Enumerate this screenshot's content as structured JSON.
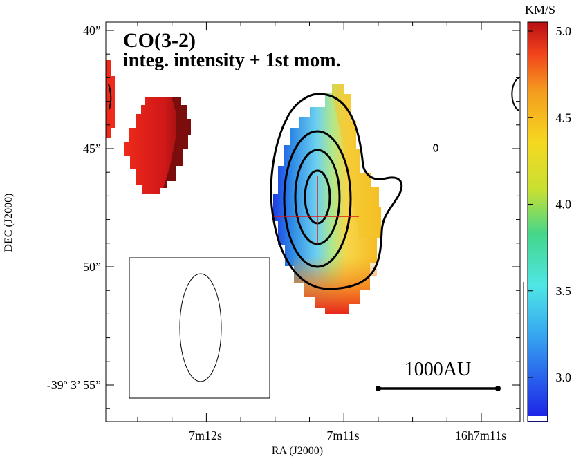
{
  "chart_data": {
    "type": "heatmap",
    "title_lines": [
      "CO(3-2)",
      "integ. intensity + 1st mom."
    ],
    "xlabel": "RA (J2000)",
    "ylabel": "DEC (J2000)",
    "x_ticks": [
      "7m12s",
      "7m11s",
      "16h7m11s"
    ],
    "y_ticks": [
      "40”",
      "45”",
      "50”",
      "-39º 3’ 55”"
    ],
    "y_tick_values_arcsec": [
      40,
      45,
      50,
      55
    ],
    "colorbar": {
      "unit": "KM/S",
      "ticks": [
        "5.0",
        "4.5",
        "4.0",
        "3.5",
        "3.0"
      ],
      "tick_values": [
        5.0,
        4.5,
        4.0,
        3.5,
        3.0
      ],
      "range": [
        2.75,
        5.1
      ],
      "colormap": "rainbow (blue-cyan-green-yellow-red)"
    },
    "scale_bar_label": "1000AU",
    "contours": "integrated intensity, 4 closed levels",
    "beam_shape": "ellipse",
    "velocity_fields": [
      {
        "name": "central",
        "min_kms": 2.8,
        "max_kms": 4.7,
        "gradient": "blue (east) to yellow/red (west and south)"
      },
      {
        "name": "north-east blob",
        "kms": 4.9
      },
      {
        "name": "east edge",
        "kms": 4.9
      }
    ],
    "grid": false
  }
}
